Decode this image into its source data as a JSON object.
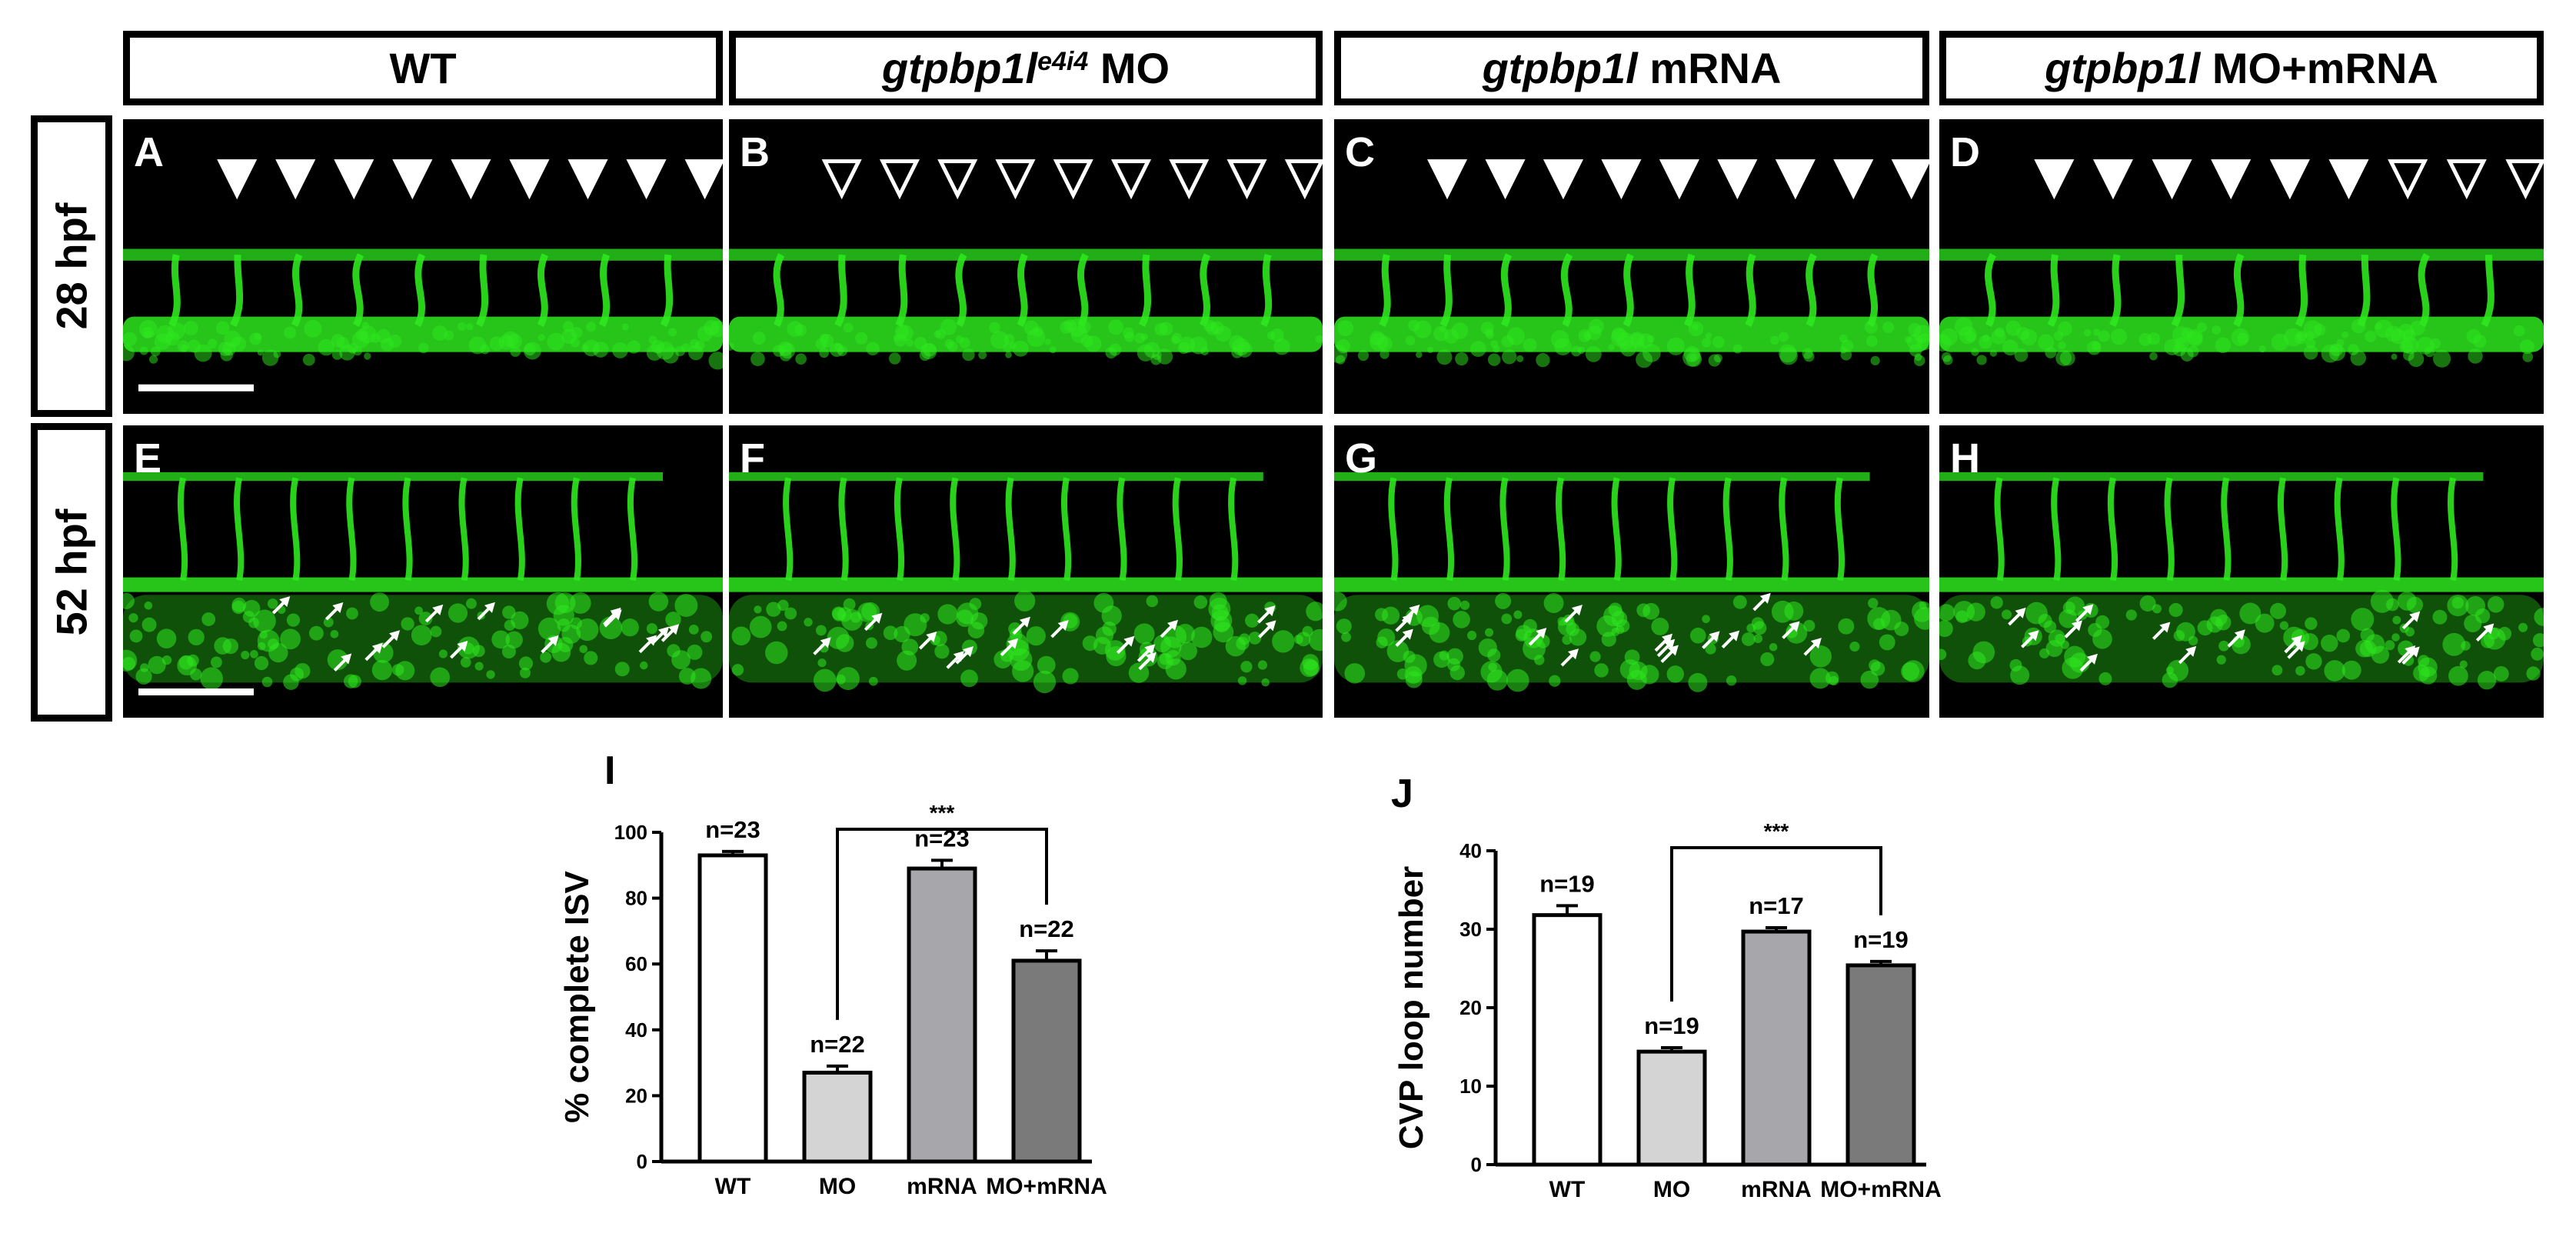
{
  "columns": [
    {
      "label": "WT",
      "italic": "",
      "sup": "",
      "suffix": ""
    },
    {
      "label": "",
      "italic": "gtpbp1l",
      "sup": "e4i4",
      "suffix": " MO"
    },
    {
      "label": "",
      "italic": "gtpbp1l",
      "sup": "",
      "suffix": " mRNA"
    },
    {
      "label": "",
      "italic": "gtpbp1l",
      "sup": "",
      "suffix": " MO+mRNA"
    }
  ],
  "rows": [
    {
      "label": "28 hpf"
    },
    {
      "label": "52 hpf"
    }
  ],
  "panels": {
    "top": [
      "A",
      "B",
      "C",
      "D"
    ],
    "bottom": [
      "E",
      "F",
      "G",
      "H"
    ]
  },
  "arrowheads": {
    "A": [
      "filled",
      "filled",
      "filled",
      "filled",
      "filled",
      "filled",
      "filled",
      "filled",
      "filled"
    ],
    "B": [
      "open",
      "open",
      "open",
      "open",
      "open",
      "open",
      "open",
      "open",
      "open"
    ],
    "C": [
      "filled",
      "filled",
      "filled",
      "filled",
      "filled",
      "filled",
      "filled",
      "filled",
      "filled"
    ],
    "D": [
      "filled",
      "filled",
      "filled",
      "filled",
      "filled",
      "filled",
      "open",
      "open",
      "open"
    ]
  },
  "colors": {
    "vessel": "#2ee81e",
    "panel_bg": "#000000",
    "WT": "#ffffff",
    "MO": "#d4d4d4",
    "mRNA": "#a6a6ab",
    "MO+mRNA": "#7a7a7a"
  },
  "chart_data": [
    {
      "letter": "I",
      "type": "bar",
      "categories": [
        "WT",
        "MO",
        "mRNA",
        "MO+mRNA"
      ],
      "values": [
        93,
        27,
        89,
        61
      ],
      "errors": [
        1.2,
        2,
        2.5,
        3
      ],
      "n_labels": [
        "n=23",
        "n=22",
        "n=23",
        "n=22"
      ],
      "ylabel": "% complete ISV",
      "ylim": [
        0,
        100
      ],
      "yticks": [
        0,
        20,
        40,
        60,
        80,
        100
      ],
      "significance": {
        "from": "MO",
        "to": "MO+mRNA",
        "label": "***"
      },
      "grid": false
    },
    {
      "letter": "J",
      "type": "bar",
      "categories": [
        "WT",
        "MO",
        "mRNA",
        "MO+mRNA"
      ],
      "values": [
        31.8,
        14.4,
        29.7,
        25.4
      ],
      "errors": [
        1.2,
        0.5,
        0.5,
        0.5
      ],
      "n_labels": [
        "n=19",
        "n=19",
        "n=17",
        "n=19"
      ],
      "ylabel": "CVP loop number",
      "ylim": [
        0,
        40
      ],
      "yticks": [
        0,
        10,
        20,
        30,
        40
      ],
      "significance": {
        "from": "MO",
        "to": "MO+mRNA",
        "label": "***"
      },
      "grid": false
    }
  ]
}
